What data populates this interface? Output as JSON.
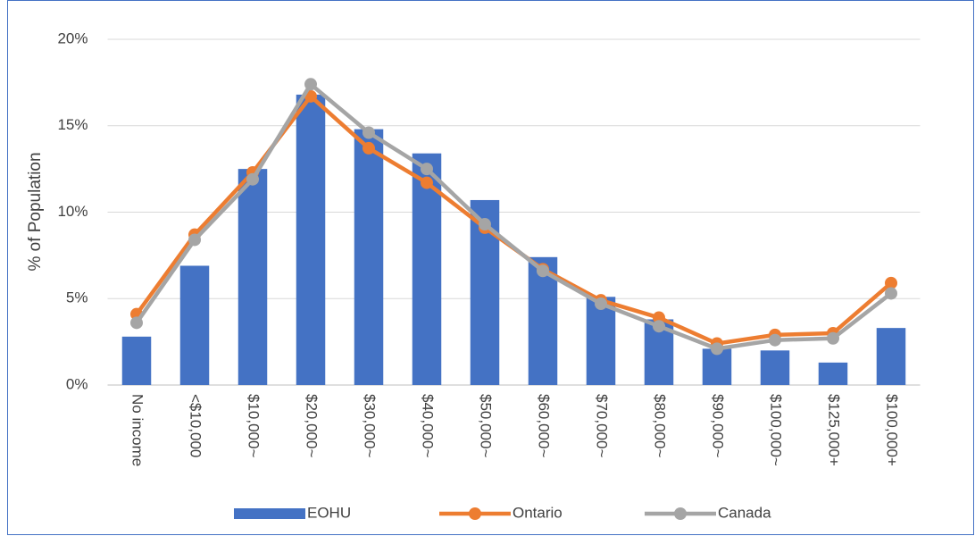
{
  "chart_data": {
    "type": "bar-line",
    "y_label": "% of Population",
    "categories": [
      "No income",
      "<$10,000",
      "$10,000~",
      "$20,000~",
      "$30,000~",
      "$40,000~",
      "$50,000~",
      "$60,000~",
      "$70,000~",
      "$80,000~",
      "$90,000~",
      "$100,000~",
      "$125,000+",
      "$100,000+"
    ],
    "series": [
      {
        "name": "EOHU",
        "type": "bar",
        "color": "#4472c4",
        "values": [
          2.8,
          6.9,
          12.5,
          16.8,
          14.8,
          13.4,
          10.7,
          7.4,
          5.1,
          3.8,
          2.1,
          2.0,
          1.3,
          3.3
        ]
      },
      {
        "name": "Ontario",
        "type": "line",
        "color": "#ed7d31",
        "values": [
          4.1,
          8.7,
          12.3,
          16.7,
          13.7,
          11.7,
          9.1,
          6.7,
          4.9,
          3.9,
          2.4,
          2.9,
          3.0,
          5.9
        ]
      },
      {
        "name": "Canada",
        "type": "line",
        "color": "#a5a5a5",
        "values": [
          3.6,
          8.4,
          11.9,
          17.4,
          14.6,
          12.5,
          9.3,
          6.6,
          4.7,
          3.4,
          2.1,
          2.6,
          2.7,
          5.3
        ]
      }
    ],
    "ylim": [
      0,
      20
    ],
    "yticks": [
      {
        "value": 0,
        "label": "0%"
      },
      {
        "value": 5,
        "label": "5%"
      },
      {
        "value": 10,
        "label": "10%"
      },
      {
        "value": 15,
        "label": "15%"
      },
      {
        "value": 20,
        "label": "20%"
      }
    ],
    "grid": true,
    "legend": "bottom"
  }
}
